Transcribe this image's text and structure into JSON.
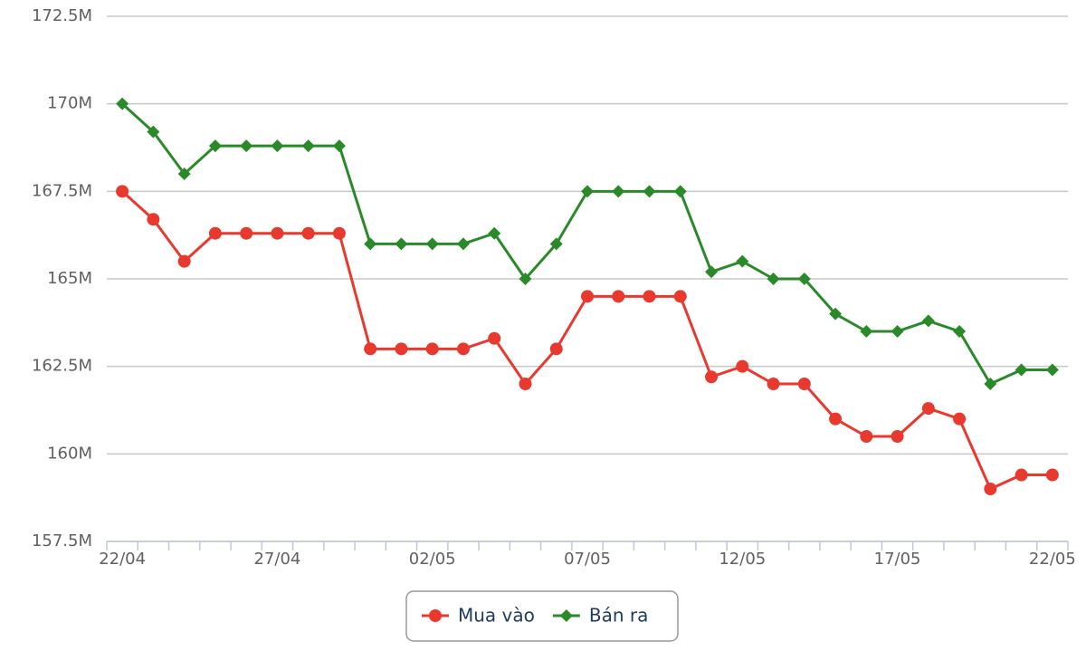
{
  "chart_data": {
    "type": "line",
    "categories": [
      "22/04",
      null,
      null,
      null,
      null,
      "27/04",
      null,
      null,
      null,
      null,
      "02/05",
      null,
      null,
      null,
      null,
      "07/05",
      null,
      null,
      null,
      null,
      "12/05",
      null,
      null,
      null,
      null,
      "17/05",
      null,
      null,
      null,
      null,
      "22/05"
    ],
    "series": [
      {
        "name": "Mua vào",
        "color": "#e8392f",
        "marker": "circle",
        "values": [
          167.5,
          166.7,
          165.5,
          166.3,
          166.3,
          166.3,
          166.3,
          166.3,
          163.0,
          163.0,
          163.0,
          163.0,
          163.3,
          162.0,
          163.0,
          164.5,
          164.5,
          164.5,
          164.5,
          162.2,
          162.5,
          162.0,
          162.0,
          161.0,
          160.5,
          160.5,
          161.3,
          161.0,
          159.0,
          159.4,
          159.4
        ]
      },
      {
        "name": "Bán ra",
        "color": "#2a8a2a",
        "marker": "diamond",
        "values": [
          170.0,
          169.2,
          168.0,
          168.8,
          168.8,
          168.8,
          168.8,
          168.8,
          166.0,
          166.0,
          166.0,
          166.0,
          166.3,
          165.0,
          166.0,
          167.5,
          167.5,
          167.5,
          167.5,
          165.2,
          165.5,
          165.0,
          165.0,
          164.0,
          163.5,
          163.5,
          163.8,
          163.5,
          162.0,
          162.4,
          162.4
        ]
      }
    ],
    "ylim": [
      157.5,
      172.5
    ],
    "yticks": [
      {
        "value": 157.5,
        "label": "157.5M"
      },
      {
        "value": 160,
        "label": "160M"
      },
      {
        "value": 162.5,
        "label": "162.5M"
      },
      {
        "value": 165,
        "label": "165M"
      },
      {
        "value": 167.5,
        "label": "167.5M"
      },
      {
        "value": 170,
        "label": "170M"
      },
      {
        "value": 172.5,
        "label": "172.5M"
      }
    ],
    "grid": true
  }
}
